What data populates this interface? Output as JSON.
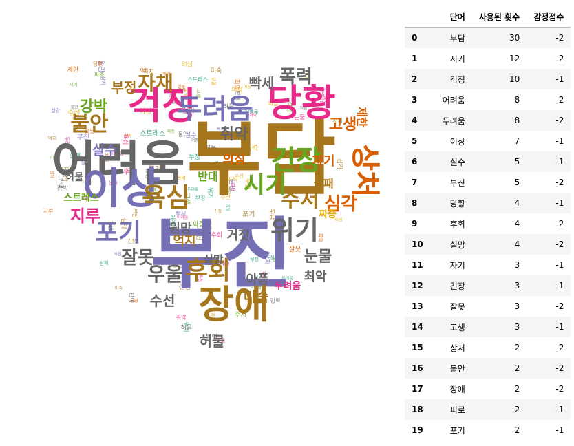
{
  "table": {
    "columns": [
      "",
      "단어",
      "사용된 횟수",
      "감정점수"
    ],
    "rows": [
      {
        "index": "0",
        "word": "부담",
        "count": "30",
        "score": "-2"
      },
      {
        "index": "1",
        "word": "시기",
        "count": "12",
        "score": "-2"
      },
      {
        "index": "2",
        "word": "걱정",
        "count": "10",
        "score": "-1"
      },
      {
        "index": "3",
        "word": "어려움",
        "count": "8",
        "score": "-2"
      },
      {
        "index": "4",
        "word": "두려움",
        "count": "8",
        "score": "-2"
      },
      {
        "index": "5",
        "word": "이상",
        "count": "7",
        "score": "-1"
      },
      {
        "index": "6",
        "word": "실수",
        "count": "5",
        "score": "-1"
      },
      {
        "index": "7",
        "word": "부진",
        "count": "5",
        "score": "-2"
      },
      {
        "index": "8",
        "word": "당황",
        "count": "4",
        "score": "-1"
      },
      {
        "index": "9",
        "word": "후회",
        "count": "4",
        "score": "-2"
      },
      {
        "index": "10",
        "word": "실망",
        "count": "4",
        "score": "-2"
      },
      {
        "index": "11",
        "word": "자기",
        "count": "3",
        "score": "-1"
      },
      {
        "index": "12",
        "word": "긴장",
        "count": "3",
        "score": "-1"
      },
      {
        "index": "13",
        "word": "잘못",
        "count": "3",
        "score": "-2"
      },
      {
        "index": "14",
        "word": "고생",
        "count": "3",
        "score": "-1"
      },
      {
        "index": "15",
        "word": "상처",
        "count": "2",
        "score": "-2"
      },
      {
        "index": "16",
        "word": "불안",
        "count": "2",
        "score": "-2"
      },
      {
        "index": "17",
        "word": "장애",
        "count": "2",
        "score": "-2"
      },
      {
        "index": "18",
        "word": "피로",
        "count": "2",
        "score": "-1"
      },
      {
        "index": "19",
        "word": "포기",
        "count": "2",
        "score": "-1"
      }
    ]
  },
  "wordcloud": {
    "shape": "heart",
    "colors": [
      "#a6761d",
      "#7570b3",
      "#e7298a",
      "#66a61e",
      "#d95f02",
      "#e6ab02",
      "#666666",
      "#1b9e77"
    ],
    "words": [
      "부담",
      "부진",
      "어려움",
      "걱정",
      "당황",
      "이상",
      "장애",
      "두려움",
      "긴장",
      "상처",
      "후회",
      "시기",
      "자채",
      "폭력",
      "불안",
      "위기",
      "포기",
      "실수",
      "욕심",
      "주저",
      "잘못",
      "우울",
      "강박",
      "부정",
      "심각",
      "빡세",
      "취약",
      "고생",
      "지루",
      "의심",
      "반대",
      "실패",
      "미숙",
      "원망",
      "눈물",
      "아픔",
      "최악",
      "수선",
      "허물",
      "거짓",
      "억지",
      "실망",
      "두려움",
      "짜증",
      "제한",
      "자기",
      "허물",
      "스트레스"
    ]
  }
}
